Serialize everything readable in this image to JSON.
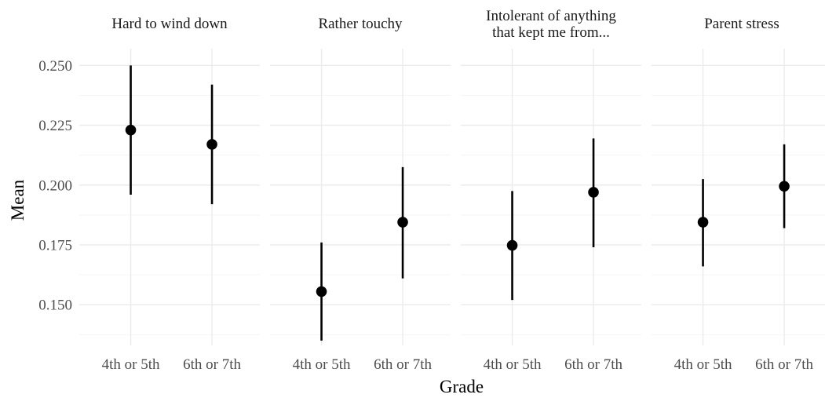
{
  "chart_data": {
    "type": "pointrange-facets",
    "xlabel": "Grade",
    "ylabel": "Mean",
    "ylim": [
      0.133,
      0.257
    ],
    "y_ticks": [
      0.15,
      0.175,
      0.2,
      0.225,
      0.25
    ],
    "y_tick_labels": [
      "0.150",
      "0.175",
      "0.200",
      "0.225",
      "0.250"
    ],
    "categories": [
      "4th or 5th",
      "6th or 7th"
    ],
    "grid": true,
    "legend": "none",
    "point_color": "#000000",
    "panels": [
      {
        "title_lines": [
          "Hard to wind down"
        ],
        "points": [
          {
            "x": "4th or 5th",
            "mean": 0.223,
            "lower": 0.196,
            "upper": 0.25
          },
          {
            "x": "6th or 7th",
            "mean": 0.217,
            "lower": 0.192,
            "upper": 0.242
          }
        ]
      },
      {
        "title_lines": [
          "Rather touchy"
        ],
        "points": [
          {
            "x": "4th or 5th",
            "mean": 0.1555,
            "lower": 0.135,
            "upper": 0.176
          },
          {
            "x": "6th or 7th",
            "mean": 0.1845,
            "lower": 0.161,
            "upper": 0.2075
          }
        ]
      },
      {
        "title_lines": [
          "Intolerant of anything",
          "that kept me from..."
        ],
        "points": [
          {
            "x": "4th or 5th",
            "mean": 0.1748,
            "lower": 0.152,
            "upper": 0.1975
          },
          {
            "x": "6th or 7th",
            "mean": 0.197,
            "lower": 0.174,
            "upper": 0.2195
          }
        ]
      },
      {
        "title_lines": [
          "Parent stress"
        ],
        "points": [
          {
            "x": "4th or 5th",
            "mean": 0.1845,
            "lower": 0.166,
            "upper": 0.2025
          },
          {
            "x": "6th or 7th",
            "mean": 0.1995,
            "lower": 0.182,
            "upper": 0.217
          }
        ]
      }
    ]
  }
}
